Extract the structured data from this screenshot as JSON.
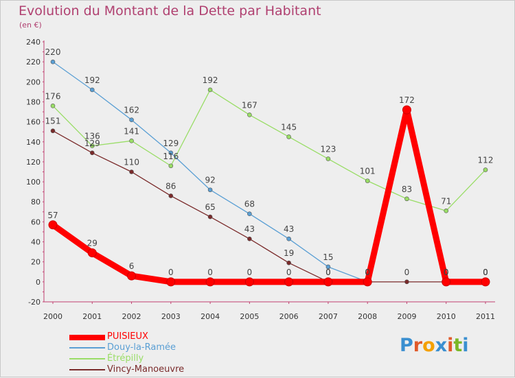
{
  "header": {
    "title": "Evolution du Montant de la Dette par Habitant",
    "unit": "(en €)"
  },
  "logo": {
    "text": "Proxiti",
    "colors": [
      "#3a8fd0",
      "#e05a2a",
      "#f4a000",
      "#3a8fd0",
      "#e05a2a",
      "#7ab827",
      "#3a8fd0"
    ]
  },
  "chart_data": {
    "type": "line",
    "title": "Evolution du Montant de la Dette par Habitant",
    "xlabel": "",
    "ylabel": "(en €)",
    "x": [
      "2000",
      "2001",
      "2002",
      "2003",
      "2004",
      "2005",
      "2006",
      "2007",
      "2008",
      "2009",
      "2010",
      "2011"
    ],
    "ylim": [
      -20,
      240
    ],
    "yticks": [
      -20,
      0,
      20,
      40,
      60,
      80,
      100,
      120,
      140,
      160,
      180,
      200,
      220,
      240
    ],
    "grid": false,
    "legend": "bottom-left",
    "series": [
      {
        "name": "PUISIEUX",
        "color": "#ff0000",
        "values": [
          57,
          29,
          6,
          0,
          0,
          0,
          0,
          0,
          0,
          172,
          0,
          0
        ],
        "labels": [
          "57",
          "29",
          "6",
          "0",
          "0",
          "0",
          "0",
          "0",
          "0",
          "172",
          "0",
          "0"
        ]
      },
      {
        "name": "Douy-la-Ramée",
        "color": "#5a9fd4",
        "values": [
          220,
          192,
          162,
          129,
          92,
          68,
          43,
          15,
          0,
          null,
          0,
          0
        ],
        "labels": [
          "220",
          "192",
          "162",
          "129",
          "92",
          "68",
          "43",
          "15",
          "0",
          "",
          "0",
          "0"
        ]
      },
      {
        "name": "Étrépilly",
        "color": "#99dd66",
        "values": [
          176,
          136,
          141,
          116,
          192,
          167,
          145,
          123,
          101,
          83,
          71,
          112
        ],
        "labels": [
          "176",
          "136",
          "141",
          "116",
          "192",
          "167",
          "145",
          "123",
          "101",
          "83",
          "71",
          "112"
        ]
      },
      {
        "name": "Vincy-Manoeuvre",
        "color": "#7a2a2a",
        "values": [
          151,
          129,
          110,
          86,
          65,
          43,
          19,
          0,
          0,
          0,
          0,
          0
        ],
        "labels": [
          "151",
          "129",
          "110",
          "86",
          "65",
          "43",
          "19",
          "0",
          "0",
          "0",
          "0",
          "0"
        ]
      }
    ]
  }
}
